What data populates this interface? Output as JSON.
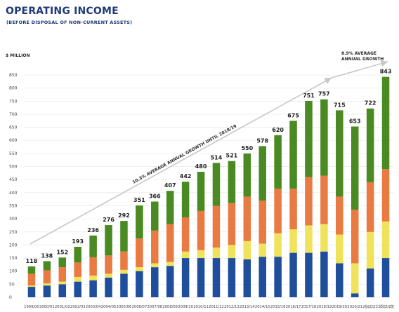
{
  "title": "OPERATING INCOME",
  "subtitle": "(BEFORE DISPOSAL OF NON-CURRENT ASSETS)",
  "watermark": "Johri Osett",
  "chart_data": {
    "type": "bar",
    "stacked": true,
    "ylabel": "$ MILLION",
    "ylim": [
      0,
      850
    ],
    "yticks": [
      0,
      50,
      100,
      150,
      200,
      250,
      300,
      350,
      400,
      450,
      500,
      550,
      600,
      650,
      700,
      750,
      800,
      850
    ],
    "grid": true,
    "categories": [
      "1999/00",
      "2000/01",
      "2001/02",
      "2002/03",
      "2003/04",
      "2004/05",
      "2005/06",
      "2006/07",
      "2007/08",
      "2008/09",
      "2009/10",
      "2010/11",
      "2011/12",
      "2012/13",
      "2013/14",
      "2014/15",
      "2015/16",
      "2016/17",
      "2017/18",
      "2018/19",
      "2019/20",
      "2020/21",
      "2021/22",
      "2022/23"
    ],
    "totals": [
      118,
      138,
      152,
      193,
      236,
      276,
      292,
      351,
      366,
      407,
      442,
      480,
      514,
      521,
      550,
      578,
      620,
      675,
      751,
      757,
      715,
      653,
      722,
      843
    ],
    "series": [
      {
        "color": "#1f4e9c",
        "values": [
          40,
          45,
          50,
          60,
          65,
          75,
          90,
          100,
          115,
          120,
          150,
          150,
          150,
          150,
          145,
          155,
          155,
          170,
          170,
          175,
          130,
          15,
          110,
          150
        ]
      },
      {
        "color": "#f0e25a",
        "values": [
          5,
          8,
          10,
          18,
          18,
          15,
          15,
          15,
          15,
          15,
          25,
          30,
          40,
          50,
          70,
          50,
          90,
          90,
          105,
          105,
          110,
          115,
          140,
          140
        ]
      },
      {
        "color": "#e87a42",
        "values": [
          45,
          50,
          55,
          55,
          70,
          70,
          70,
          110,
          125,
          145,
          130,
          150,
          160,
          160,
          170,
          165,
          170,
          155,
          185,
          185,
          145,
          205,
          190,
          200
        ]
      },
      {
        "color": "#4a8a22",
        "values": [
          28,
          35,
          37,
          60,
          83,
          116,
          117,
          126,
          111,
          127,
          137,
          150,
          164,
          161,
          165,
          208,
          205,
          260,
          291,
          292,
          330,
          318,
          282,
          353
        ]
      }
    ],
    "annotations": [
      {
        "text": "10.3% AVERAGE ANNUAL GROWTH UNTIL 2018/19"
      },
      {
        "text": "8.9% AVERAGE ANNUAL GROWTH"
      }
    ]
  }
}
